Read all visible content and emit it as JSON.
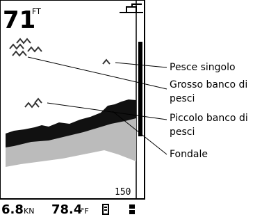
{
  "screen": {
    "depth": "71",
    "depth_unit": "FT",
    "scale": "150"
  },
  "status": {
    "speed": "6.8",
    "speed_unit": "KN",
    "temp": "78.4",
    "temp_unit": "°F"
  },
  "callouts": [
    {
      "label": "Pesce singolo"
    },
    {
      "label": "Grosso banco di pesci"
    },
    {
      "label": "Piccolo banco di pesci"
    },
    {
      "label": "Fondale"
    }
  ]
}
